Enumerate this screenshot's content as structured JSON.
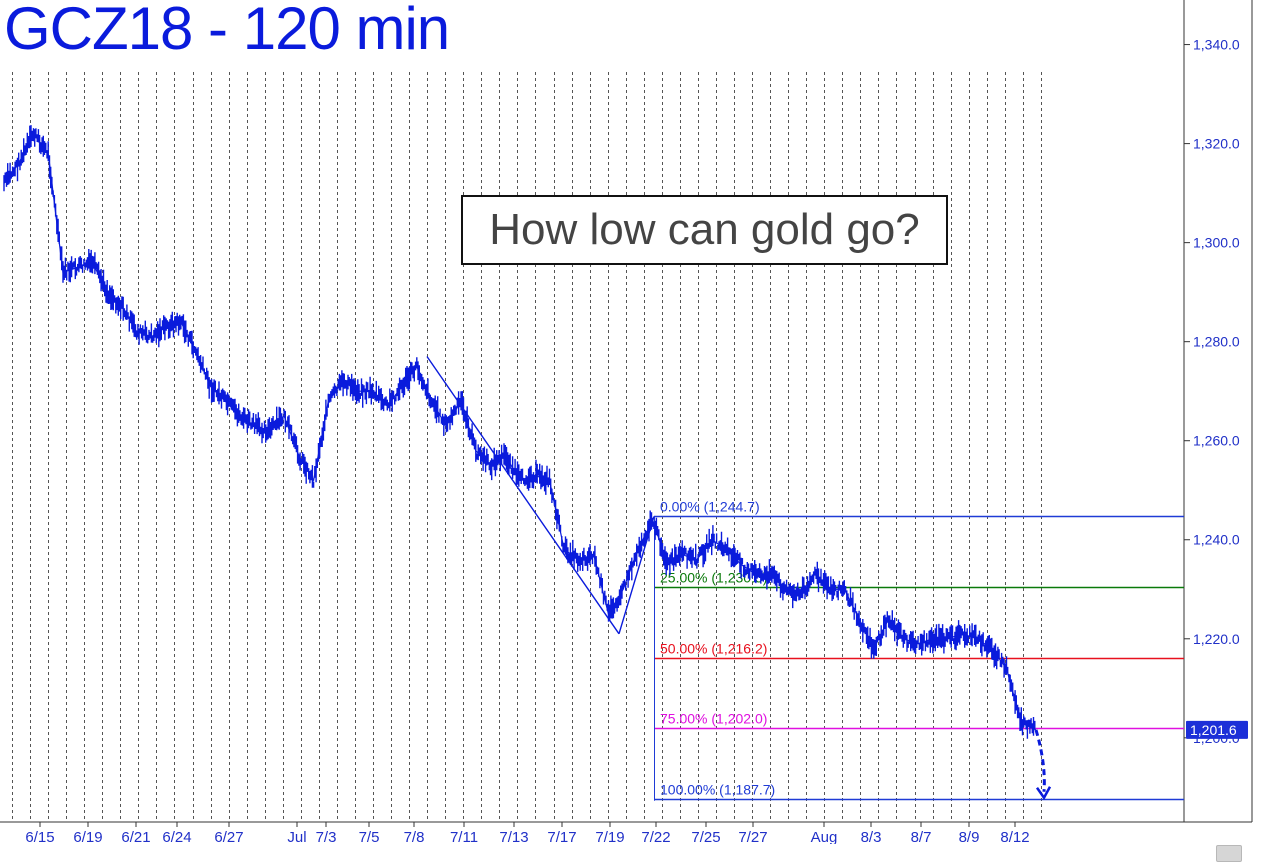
{
  "title": "GCZ18 - 120 min",
  "annotation": "How low can gold go?",
  "colors": {
    "price": "#0a1bdc",
    "fib_0": "#1f3bd6",
    "fib_25": "#0a7a0a",
    "fib_50": "#e8101e",
    "fib_75": "#e010e0",
    "fib_100": "#1f3bd6",
    "grid": "#555555",
    "axis_text": "#2030c8"
  },
  "chart_data": {
    "type": "line",
    "title": "GCZ18 - 120 min",
    "xlabel": "",
    "ylabel": "",
    "ylim": [
      1183,
      1349
    ],
    "grid": true,
    "y_ticks": [
      "1,340.0",
      "1,320.0",
      "1,300.0",
      "1,280.0",
      "1,260.0",
      "1,240.0",
      "1,220.0",
      "1,200.0"
    ],
    "y_tick_values": [
      1340,
      1320,
      1300,
      1280,
      1260,
      1240,
      1220,
      1200
    ],
    "x_labels": [
      "6/15",
      "6/19",
      "6/21",
      "6/24",
      "6/27",
      "Jul",
      "7/3",
      "7/5",
      "7/8",
      "7/11",
      "7/13",
      "7/17",
      "7/19",
      "7/22",
      "7/25",
      "7/27",
      "Aug",
      "8/3",
      "8/7",
      "8/9",
      "8/12"
    ],
    "last_price_label": "1,201.6",
    "last_price": 1201.6,
    "series": [
      {
        "values": [
          1312,
          1316,
          1322,
          1318,
          1294,
          1295,
          1296,
          1290,
          1287,
          1282,
          1281,
          1283,
          1284,
          1278,
          1271,
          1268,
          1265,
          1263,
          1262,
          1265,
          1257,
          1252,
          1268,
          1272,
          1270,
          1270,
          1267,
          1271,
          1275,
          1268,
          1263,
          1268,
          1258,
          1255,
          1257,
          1252,
          1253,
          1252,
          1238,
          1236,
          1237,
          1225,
          1230,
          1238,
          1244,
          1235,
          1237,
          1236,
          1240,
          1238,
          1235,
          1233,
          1233,
          1230,
          1229,
          1233,
          1230,
          1230,
          1224,
          1218,
          1224,
          1220,
          1219,
          1220,
          1220,
          1221,
          1220,
          1218,
          1214,
          1203,
          1201.6
        ]
      }
    ],
    "trend_lines": [
      {
        "from": [
          1279,
          1277
        ],
        "to": [
          1221,
          1221
        ]
      },
      {
        "from": [
          1221,
          1221
        ],
        "to": [
          1244.7,
          1244.7
        ]
      }
    ],
    "fib_levels": [
      {
        "label": "0.00% (1,244.7)",
        "value": 1244.7
      },
      {
        "label": "25.00% (1,230.5)",
        "value": 1230.5
      },
      {
        "label": "50.00% (1,216.2)",
        "value": 1216.2
      },
      {
        "label": "75.00% (1,202.0)",
        "value": 1202.0
      },
      {
        "label": "100.00% (1,187.7)",
        "value": 1187.7
      }
    ]
  }
}
